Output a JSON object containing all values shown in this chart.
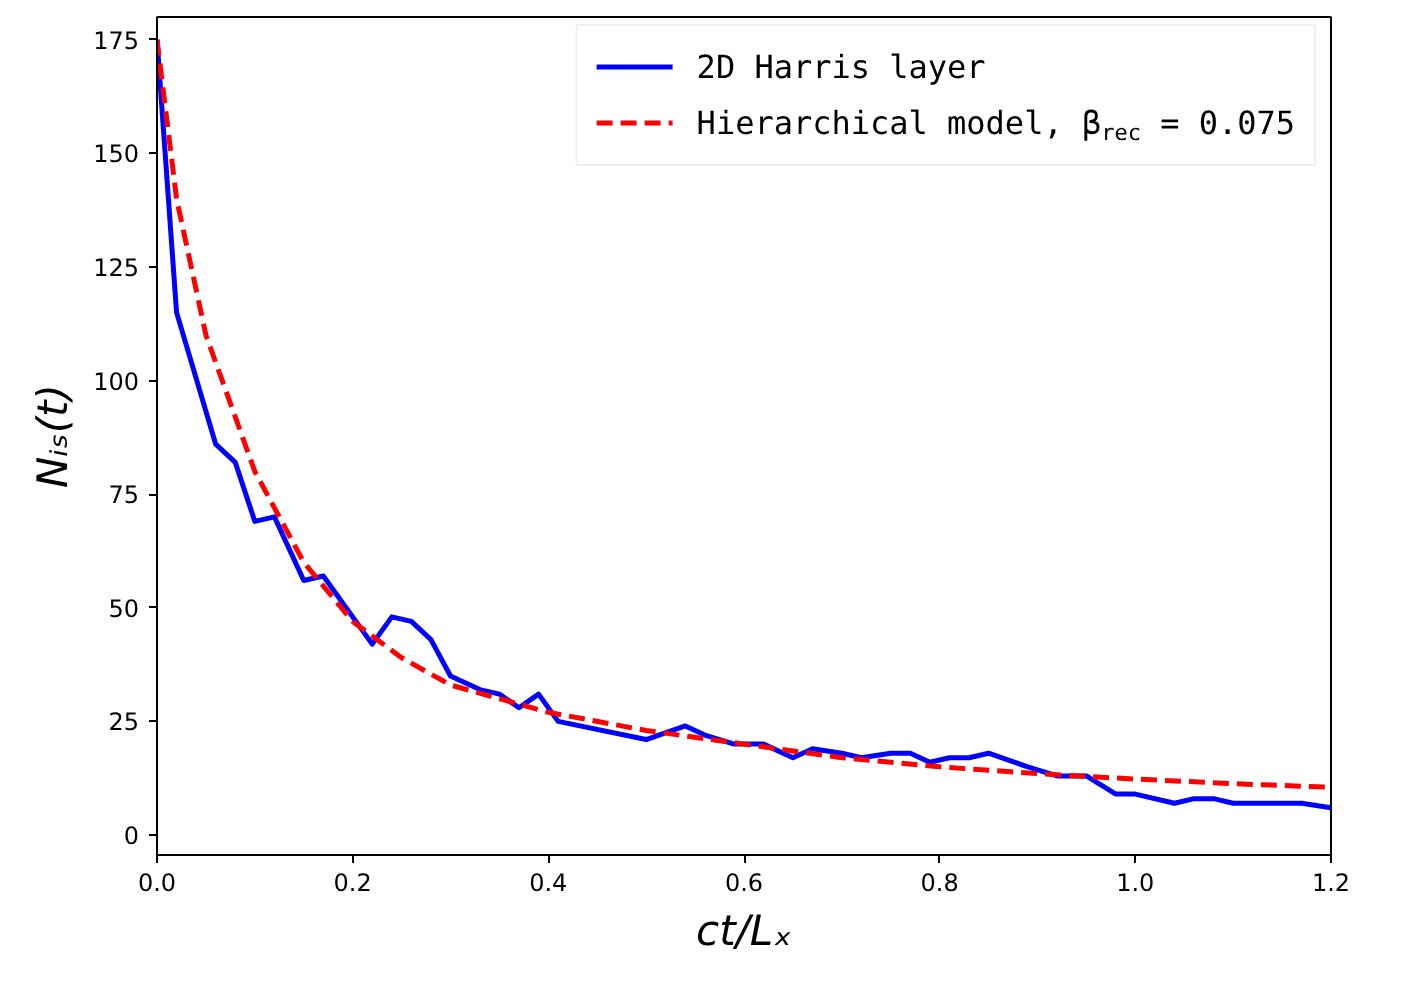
{
  "chart_data": {
    "type": "line",
    "xlabel": "ct/Lₓ",
    "ylabel": "Nᵢₛ(t)",
    "xlim": [
      0,
      1.2
    ],
    "ylim": [
      -4.4,
      180
    ],
    "xticks": [
      {
        "value": 0,
        "label": "0.0"
      },
      {
        "value": 0.2,
        "label": "0.2"
      },
      {
        "value": 0.4,
        "label": "0.4"
      },
      {
        "value": 0.6,
        "label": "0.6"
      },
      {
        "value": 0.8,
        "label": "0.8"
      },
      {
        "value": 1.0,
        "label": "1.0"
      },
      {
        "value": 1.2,
        "label": "1.2"
      }
    ],
    "yticks": [
      0,
      25,
      50,
      75,
      100,
      125,
      150,
      175
    ],
    "grid": false,
    "legend": "top right",
    "marker": "none",
    "series": [
      {
        "name": "2D Harris layer",
        "color": "#0000ff",
        "line_style": "solid",
        "x": [
          0,
          0.02,
          0.06,
          0.08,
          0.1,
          0.12,
          0.15,
          0.17,
          0.22,
          0.24,
          0.26,
          0.28,
          0.3,
          0.33,
          0.35,
          0.37,
          0.39,
          0.41,
          0.5,
          0.54,
          0.56,
          0.59,
          0.62,
          0.65,
          0.67,
          0.7,
          0.72,
          0.75,
          0.77,
          0.79,
          0.81,
          0.83,
          0.85,
          0.89,
          0.92,
          0.95,
          0.98,
          1.0,
          1.04,
          1.06,
          1.08,
          1.1,
          1.17,
          1.2
        ],
        "values": [
          175,
          115,
          86,
          82,
          69,
          70,
          56,
          57,
          42,
          48,
          47,
          43,
          35,
          32,
          31,
          28,
          31,
          25,
          21,
          24,
          22,
          20,
          20,
          17,
          19,
          18,
          17,
          18,
          18,
          16,
          17,
          17,
          18,
          15,
          13,
          13,
          9,
          9,
          7,
          8,
          8,
          7,
          7,
          6
        ]
      },
      {
        "name": "Hierarchical model, β$_{rec}$ = 0.075",
        "color": "#ff0000",
        "line_style": "dashed",
        "x": [
          0,
          0.02,
          0.05,
          0.1,
          0.15,
          0.2,
          0.25,
          0.3,
          0.4,
          0.5,
          0.6,
          0.7,
          0.8,
          0.9,
          1.0,
          1.1,
          1.2
        ],
        "values": [
          175,
          140,
          110,
          80,
          60,
          47,
          39,
          33,
          27,
          23,
          20,
          17,
          15,
          13.5,
          12.3,
          11.3,
          10.5
        ]
      }
    ]
  }
}
